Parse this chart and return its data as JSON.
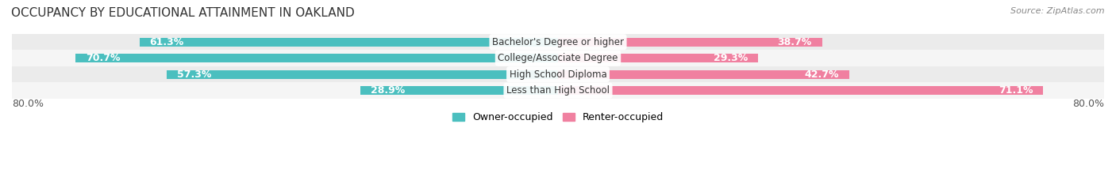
{
  "title": "OCCUPANCY BY EDUCATIONAL ATTAINMENT IN OAKLAND",
  "source": "Source: ZipAtlas.com",
  "categories": [
    "Less than High School",
    "High School Diploma",
    "College/Associate Degree",
    "Bachelor's Degree or higher"
  ],
  "owner_values": [
    28.9,
    57.3,
    70.7,
    61.3
  ],
  "renter_values": [
    71.1,
    42.7,
    29.3,
    38.7
  ],
  "owner_color": "#4BBFBF",
  "renter_color": "#F080A0",
  "bar_bg_color": "#E8E8E8",
  "row_bg_colors": [
    "#F5F5F5",
    "#EBEBEB"
  ],
  "x_left_label": "80.0%",
  "x_right_label": "80.0%",
  "x_min": -80,
  "x_max": 80,
  "bar_height": 0.55,
  "title_fontsize": 11,
  "source_fontsize": 8,
  "label_fontsize": 9,
  "tick_fontsize": 9,
  "legend_fontsize": 9
}
